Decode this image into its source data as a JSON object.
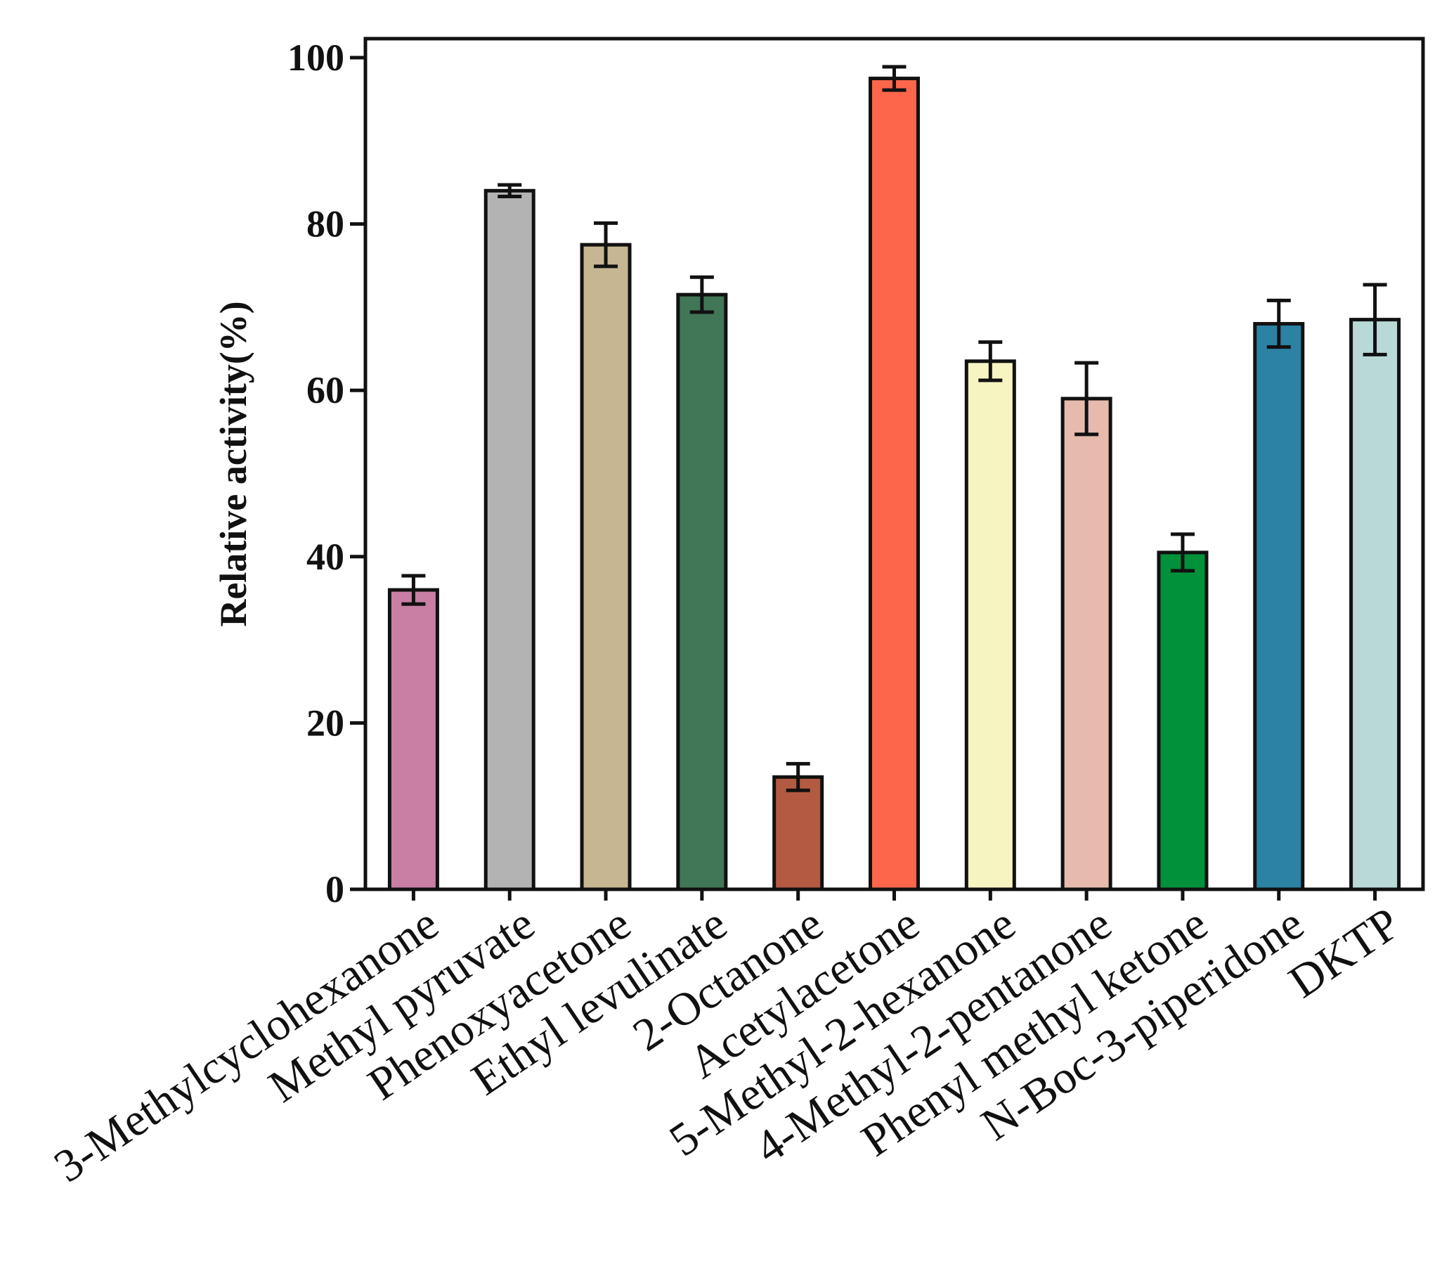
{
  "chart_data": {
    "type": "bar",
    "title": "",
    "xlabel": "",
    "ylabel": "Relative activity(%)",
    "ylim": [
      0,
      100
    ],
    "yticks": [
      0,
      20,
      40,
      60,
      80,
      100
    ],
    "grid": false,
    "categories": [
      "3-Methylcyclohexanone",
      "Methyl pyruvate",
      "Phenoxyacetone",
      "Ethyl levulinate",
      "2-Octanone",
      "Acetylacetone",
      "5-Methyl-2-hexanone",
      "4-Methyl-2-pentanone",
      "Phenyl methyl ketone",
      "N-Boc-3-piperidone",
      "DKTP"
    ],
    "values": [
      36,
      84,
      77.5,
      71.5,
      13.5,
      97.5,
      63.5,
      59,
      40.5,
      68,
      68.5
    ],
    "errors": [
      1.7,
      0.7,
      2.6,
      2.1,
      1.6,
      1.4,
      2.3,
      4.3,
      2.2,
      2.8,
      4.2
    ],
    "colors": [
      "#c97ea3",
      "#b3b3b3",
      "#c6b792",
      "#417656",
      "#b45a42",
      "#fd664b",
      "#f6f4c1",
      "#e6bbad",
      "#00913a",
      "#2b82a3",
      "#b9d9d7"
    ]
  }
}
